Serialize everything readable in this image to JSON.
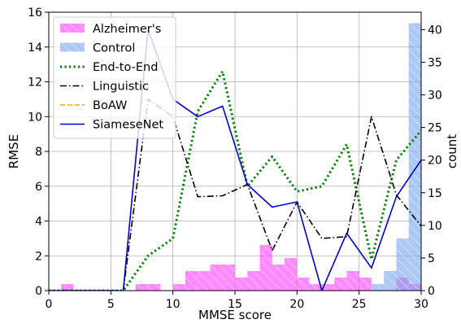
{
  "chart_data": {
    "type": "bar",
    "xlabel": "MMSE score",
    "ylabel": "RMSE",
    "y2label": "count",
    "xlim": [
      0,
      30
    ],
    "ylim": [
      0,
      16
    ],
    "y2lim": [
      0,
      42.67
    ],
    "xticks": [
      "0",
      "5",
      "10",
      "15",
      "20",
      "25",
      "30"
    ],
    "yticks": [
      "0",
      "2",
      "4",
      "6",
      "8",
      "10",
      "12",
      "14",
      "16"
    ],
    "y2ticks": [
      "0",
      "5",
      "10",
      "15",
      "20",
      "25",
      "30",
      "35",
      "40"
    ],
    "grid": true,
    "legend_position": "top-left",
    "histograms": [
      {
        "name": "Alzheimer's",
        "color": "#ff40ff",
        "bin_start": 1,
        "bin_width": 1,
        "counts": [
          1,
          0,
          0,
          0,
          0,
          0,
          1,
          1,
          0,
          1,
          3,
          3,
          4,
          4,
          2,
          3,
          7,
          4,
          5,
          2,
          1,
          1,
          2,
          3,
          2,
          0,
          0,
          2,
          1
        ]
      },
      {
        "name": "Control",
        "color": "#7aa6ee",
        "bin_start": 1,
        "bin_width": 1,
        "counts": [
          0,
          0,
          0,
          0,
          0,
          0,
          0,
          0,
          0,
          0,
          0,
          0,
          0,
          0,
          0,
          0,
          0,
          0,
          0,
          0,
          0,
          0,
          0,
          0,
          0,
          1,
          3,
          8,
          41
        ]
      }
    ],
    "series": [
      {
        "name": "End-to-End",
        "style": "dotted",
        "color": "#008000",
        "x": [
          0,
          6,
          8,
          10,
          12,
          14,
          16,
          18,
          20,
          22,
          24,
          26,
          28,
          30
        ],
        "y": [
          0,
          0,
          2,
          3,
          10.3,
          12.6,
          6,
          7.7,
          5.7,
          6,
          8.4,
          1.8,
          7.5,
          9.2
        ]
      },
      {
        "name": "Linguistic",
        "style": "dashdot",
        "color": "#000000",
        "x": [
          0,
          6,
          8,
          10,
          12,
          14,
          16,
          18,
          20,
          22,
          24,
          26,
          28,
          30
        ],
        "y": [
          0,
          0,
          11,
          10,
          5.4,
          5.45,
          6.1,
          2.3,
          5.1,
          3,
          3.1,
          10,
          5.5,
          3.7
        ]
      },
      {
        "name": "BoAW",
        "style": "dashed",
        "color": "#ffa500",
        "x": [],
        "y": []
      },
      {
        "name": "SiameseNet",
        "style": "solid",
        "color": "#0000cc",
        "x": [
          0,
          6,
          8,
          10,
          12,
          14,
          16,
          18,
          20,
          22,
          24,
          26,
          28,
          30
        ],
        "y": [
          0,
          0,
          15,
          11,
          10,
          10.6,
          6.1,
          4.8,
          5.1,
          0,
          3.3,
          1.3,
          5.4,
          7.5
        ]
      }
    ]
  }
}
